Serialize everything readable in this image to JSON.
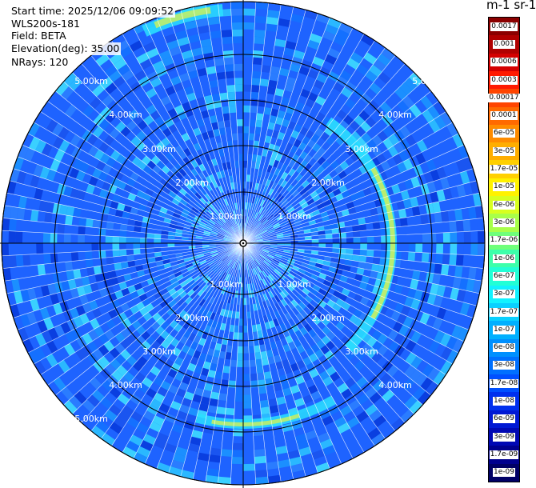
{
  "info": {
    "start_time": "Start time: 2025/12/06 09:09:52",
    "instrument": "WLS200s-181",
    "field": "Field: BETA",
    "elevation": "Elevation(deg): 35.00",
    "nrays": "NRays: 120"
  },
  "range_labels": [
    "1.00km",
    "2.00km",
    "3.00km",
    "4.00km",
    "5.00km"
  ],
  "colorbar": {
    "unit_label": "m-1 sr-1",
    "ticks": [
      "0.0017",
      "0.001",
      "0.0006",
      "0.0003",
      "0.00017",
      "0.0001",
      "6e-05",
      "3e-05",
      "1.7e-05",
      "1e-05",
      "6e-06",
      "3e-06",
      "1.7e-06",
      "1e-06",
      "6e-07",
      "3e-07",
      "1.7e-07",
      "1e-07",
      "6e-08",
      "3e-08",
      "1.7e-08",
      "1e-08",
      "6e-09",
      "3e-09",
      "1.7e-09",
      "1e-09"
    ],
    "colors": [
      "#8b0000",
      "#b00000",
      "#d40000",
      "#ff1a00",
      "#ff4500",
      "#ff6a00",
      "#ff8c00",
      "#ffae00",
      "#ffd000",
      "#fff200",
      "#d8ff20",
      "#a8ff4a",
      "#6fff7a",
      "#3dffaa",
      "#22ffd6",
      "#12f2ff",
      "#0ad0ff",
      "#00b0ff",
      "#0090ff",
      "#0070ff",
      "#0050ff",
      "#0030ee",
      "#0018d4",
      "#0008b4",
      "#00008e",
      "#000066"
    ]
  },
  "map_colors": {
    "background": "#1e63ff",
    "ring_grid": "#000000",
    "sector_lines": "#ffffff",
    "high_return": "#c8f060",
    "mid_return": "#2adfff"
  }
}
